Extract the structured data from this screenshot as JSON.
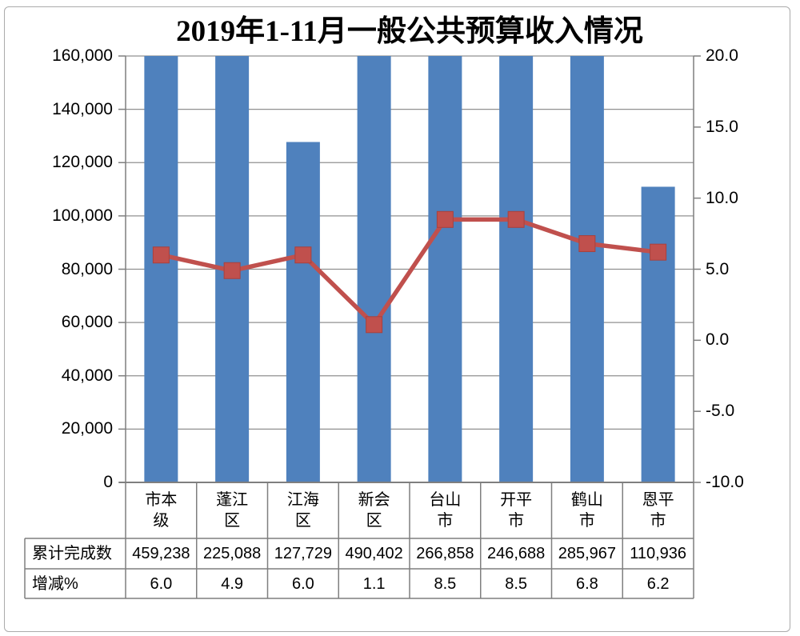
{
  "chart_data": {
    "type": "combo-bar-line",
    "title": "2019年1-11月一般公共预算收入情况",
    "categories": [
      "市本级",
      "蓬江区",
      "江海区",
      "新会区",
      "台山市",
      "开平市",
      "鹤山市",
      "恩平市"
    ],
    "series": [
      {
        "name": "累计完成数",
        "type": "bar",
        "axis": "left",
        "color": "#4f81bd",
        "values": [
          459238,
          225088,
          127729,
          490402,
          266858,
          246688,
          285967,
          110936
        ]
      },
      {
        "name": "增减%",
        "type": "line",
        "axis": "right",
        "color": "#c0504d",
        "values": [
          6.0,
          4.9,
          6.0,
          1.1,
          8.5,
          8.5,
          6.8,
          6.2
        ]
      }
    ],
    "left_axis": {
      "min": 0,
      "max": 160000,
      "step": 20000,
      "tick_labels": [
        "160,000",
        "140,000",
        "120,000",
        "100,000",
        "80,000",
        "60,000",
        "40,000",
        "20,000",
        "0"
      ]
    },
    "right_axis": {
      "min": -10,
      "max": 20,
      "step": 5,
      "tick_labels": [
        "20.0",
        "15.0",
        "10.0",
        "5.0",
        "0.0",
        "-5.0",
        "-10.0"
      ]
    },
    "grid": true,
    "legend": "none",
    "data_table": {
      "rows": [
        {
          "label": "累计完成数",
          "values": [
            "459,238",
            "225,088",
            "127,729",
            "490,402",
            "266,858",
            "246,688",
            "285,967",
            "110,936"
          ]
        },
        {
          "label": "增减%",
          "values": [
            "6.0",
            "4.9",
            "6.0",
            "1.1",
            "8.5",
            "8.5",
            "6.8",
            "6.2"
          ]
        }
      ]
    },
    "colors": {
      "grid_line": "#909090",
      "axis_line": "#7f7f7f",
      "table_border": "#7f7f7f"
    }
  }
}
